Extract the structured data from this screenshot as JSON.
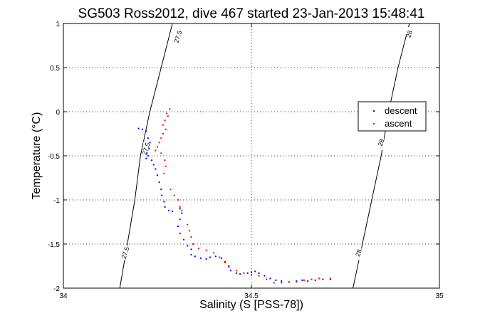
{
  "chart_data": {
    "type": "scatter",
    "title": "SG503 Ross2012, dive 467 started 23-Jan-2013 15:48:41",
    "xlabel": "Salinity (S [PSS-78])",
    "ylabel": "Temperature (°C)",
    "xlim": [
      34,
      35
    ],
    "ylim": [
      -2,
      1
    ],
    "x_ticks": [
      34,
      34.5,
      35
    ],
    "x_tick_labels": [
      "34",
      "34.5",
      "35"
    ],
    "y_ticks": [
      -2,
      -1.5,
      -1,
      -0.5,
      0,
      0.5,
      1
    ],
    "y_tick_labels": [
      "-2",
      "-1.5",
      "-1",
      "-0.5",
      "0",
      "0.5",
      "1"
    ],
    "grid": true,
    "legend_position": "right",
    "series": [
      {
        "name": "descent",
        "color": "#0000ff",
        "points": [
          [
            34.2,
            -0.19
          ],
          [
            34.21,
            -0.2
          ],
          [
            34.22,
            -0.22
          ],
          [
            34.225,
            -0.3
          ],
          [
            34.23,
            -0.35
          ],
          [
            34.228,
            -0.42
          ],
          [
            34.222,
            -0.47
          ],
          [
            34.225,
            -0.5
          ],
          [
            34.22,
            -0.53
          ],
          [
            34.235,
            -0.55
          ],
          [
            34.24,
            -0.6
          ],
          [
            34.245,
            -0.65
          ],
          [
            34.25,
            -0.72
          ],
          [
            34.255,
            -0.8
          ],
          [
            34.26,
            -0.88
          ],
          [
            34.262,
            -0.95
          ],
          [
            34.268,
            -1.02
          ],
          [
            34.27,
            -1.08
          ],
          [
            34.28,
            -1.12
          ],
          [
            34.29,
            -1.13
          ],
          [
            34.31,
            -1.1
          ],
          [
            34.315,
            -1.15
          ],
          [
            34.31,
            -1.22
          ],
          [
            34.305,
            -1.3
          ],
          [
            34.31,
            -1.38
          ],
          [
            34.32,
            -1.45
          ],
          [
            34.33,
            -1.52
          ],
          [
            34.34,
            -1.56
          ],
          [
            34.34,
            -1.62
          ],
          [
            34.35,
            -1.64
          ],
          [
            34.365,
            -1.66
          ],
          [
            34.38,
            -1.67
          ],
          [
            34.39,
            -1.65
          ],
          [
            34.405,
            -1.64
          ],
          [
            34.42,
            -1.66
          ],
          [
            34.43,
            -1.7
          ],
          [
            34.44,
            -1.75
          ],
          [
            34.445,
            -1.8
          ],
          [
            34.46,
            -1.83
          ],
          [
            34.47,
            -1.84
          ],
          [
            34.49,
            -1.83
          ],
          [
            34.5,
            -1.82
          ],
          [
            34.51,
            -1.81
          ],
          [
            34.52,
            -1.83
          ],
          [
            34.535,
            -1.86
          ],
          [
            34.55,
            -1.89
          ],
          [
            34.565,
            -1.91
          ],
          [
            34.58,
            -1.92
          ],
          [
            34.6,
            -1.93
          ],
          [
            34.62,
            -1.92
          ],
          [
            34.635,
            -1.91
          ],
          [
            34.65,
            -1.92
          ],
          [
            34.67,
            -1.91
          ],
          [
            34.69,
            -1.9
          ],
          [
            34.71,
            -1.9
          ]
        ]
      },
      {
        "name": "ascent",
        "color": "#ff0000",
        "points": [
          [
            34.283,
            0.03
          ],
          [
            34.275,
            -0.02
          ],
          [
            34.278,
            -0.05
          ],
          [
            34.27,
            -0.1
          ],
          [
            34.265,
            -0.15
          ],
          [
            34.272,
            -0.2
          ],
          [
            34.265,
            -0.25
          ],
          [
            34.26,
            -0.3
          ],
          [
            34.255,
            -0.35
          ],
          [
            34.25,
            -0.4
          ],
          [
            34.245,
            -0.44
          ],
          [
            34.26,
            -0.47
          ],
          [
            34.27,
            -0.55
          ],
          [
            34.272,
            -0.62
          ],
          [
            34.268,
            -0.7
          ],
          [
            34.285,
            -0.88
          ],
          [
            34.295,
            -0.95
          ],
          [
            34.305,
            -1.0
          ],
          [
            34.31,
            -1.08
          ],
          [
            34.315,
            -1.12
          ],
          [
            34.33,
            -1.28
          ],
          [
            34.335,
            -1.35
          ],
          [
            34.34,
            -1.42
          ],
          [
            34.345,
            -1.5
          ],
          [
            34.36,
            -1.55
          ],
          [
            34.38,
            -1.57
          ],
          [
            34.4,
            -1.6
          ],
          [
            34.415,
            -1.65
          ],
          [
            34.43,
            -1.71
          ],
          [
            34.44,
            -1.76
          ],
          [
            34.46,
            -1.8
          ],
          [
            34.48,
            -1.83
          ],
          [
            34.5,
            -1.85
          ],
          [
            34.52,
            -1.86
          ],
          [
            34.54,
            -1.9
          ],
          [
            34.56,
            -1.94
          ],
          [
            34.58,
            -1.94
          ],
          [
            34.6,
            -1.93
          ],
          [
            34.62,
            -1.93
          ],
          [
            34.64,
            -1.91
          ],
          [
            34.66,
            -1.9
          ],
          [
            34.68,
            -1.89
          ],
          [
            34.71,
            -1.89
          ]
        ]
      }
    ],
    "contours": [
      {
        "label": "27.5",
        "points": [
          [
            34.15,
            -2
          ],
          [
            34.17,
            -1.5
          ],
          [
            34.19,
            -1
          ],
          [
            34.205,
            -0.5
          ],
          [
            34.23,
            0
          ],
          [
            34.26,
            0.5
          ],
          [
            34.29,
            1
          ]
        ],
        "label_positions": [
          [
            34.165,
            -1.6
          ],
          [
            34.22,
            -0.42
          ],
          [
            34.305,
            0.85
          ]
        ]
      },
      {
        "label": "28",
        "points": [
          [
            34.77,
            -2
          ],
          [
            34.795,
            -1.5
          ],
          [
            34.82,
            -1
          ],
          [
            34.845,
            -0.5
          ],
          [
            34.865,
            0
          ],
          [
            34.89,
            0.5
          ],
          [
            34.92,
            1
          ]
        ],
        "label_positions": [
          [
            34.785,
            -1.6
          ],
          [
            34.845,
            -0.35
          ],
          [
            34.92,
            0.88
          ]
        ]
      }
    ]
  }
}
